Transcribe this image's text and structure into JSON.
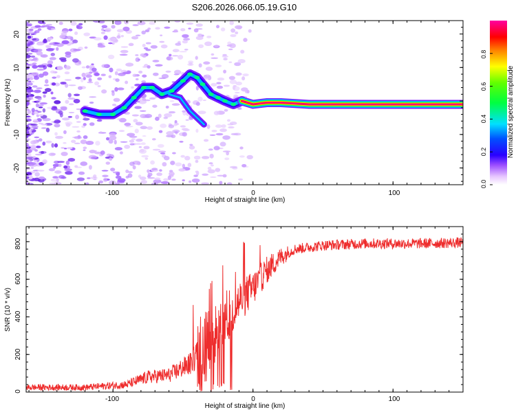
{
  "chart_data": [
    {
      "type": "heatmap",
      "title": "S206.2026.066.05.19.G10",
      "xlabel": "Height of straight line (km)",
      "ylabel": "Frequency (Hz)",
      "xlim": [
        -162,
        150
      ],
      "ylim": [
        -25,
        24
      ],
      "xticks": [
        -100,
        0,
        100
      ],
      "xtick_labels": [
        "-100",
        "0",
        "100"
      ],
      "yticks": [
        -20,
        -10,
        0,
        10,
        20
      ],
      "ytick_labels": [
        "-20",
        "-10",
        "0",
        "10",
        "20"
      ],
      "colorbar": {
        "label": "Normalized spectral amplitude",
        "range": [
          0,
          1
        ],
        "ticks": [
          0.0,
          0.2,
          0.4,
          0.6,
          0.8
        ],
        "tick_labels": [
          "0.0",
          "0.2",
          "0.4",
          "0.6",
          "0.8"
        ]
      },
      "ridge": {
        "description_points": [
          {
            "x": -120,
            "y": -3
          },
          {
            "x": -110,
            "y": -4
          },
          {
            "x": -100,
            "y": -4
          },
          {
            "x": -92,
            "y": -2
          },
          {
            "x": -85,
            "y": 1
          },
          {
            "x": -78,
            "y": 4
          },
          {
            "x": -72,
            "y": 4
          },
          {
            "x": -65,
            "y": 2
          },
          {
            "x": -58,
            "y": 3
          },
          {
            "x": -50,
            "y": 6
          },
          {
            "x": -45,
            "y": 8
          },
          {
            "x": -40,
            "y": 7
          },
          {
            "x": -36,
            "y": 5
          },
          {
            "x": -30,
            "y": 2
          },
          {
            "x": -25,
            "y": 1
          },
          {
            "x": -20,
            "y": 0
          },
          {
            "x": -14,
            "y": -1
          },
          {
            "x": -8,
            "y": 0
          },
          {
            "x": 0,
            "y": -1
          },
          {
            "x": 10,
            "y": -0.5
          },
          {
            "x": 20,
            "y": -0.5
          },
          {
            "x": 40,
            "y": -1
          },
          {
            "x": 80,
            "y": -1
          },
          {
            "x": 120,
            "y": -1
          },
          {
            "x": 150,
            "y": -1
          }
        ],
        "branch": [
          {
            "x": -60,
            "y": 2
          },
          {
            "x": -52,
            "y": 1
          },
          {
            "x": -45,
            "y": -3
          },
          {
            "x": -40,
            "y": -5
          },
          {
            "x": -35,
            "y": -7
          }
        ]
      }
    },
    {
      "type": "line",
      "xlabel": "Height of straight line (km)",
      "ylabel": "SNR (10 * v/v)",
      "xlim": [
        -162,
        150
      ],
      "ylim": [
        0,
        880
      ],
      "xticks": [
        -100,
        0,
        100
      ],
      "xtick_labels": [
        "-100",
        "0",
        "100"
      ],
      "yticks": [
        0,
        200,
        400,
        600,
        800
      ],
      "ytick_labels": [
        "0",
        "200",
        "400",
        "600",
        "800"
      ],
      "series": [
        {
          "name": "SNR",
          "color": "#ee2c2c",
          "envelope_x": [
            -162,
            -120,
            -90,
            -75,
            -60,
            -45,
            -35,
            -28,
            -20,
            -10,
            0,
            10,
            20,
            30,
            50,
            80,
            100,
            120,
            150
          ],
          "envelope_y": [
            25,
            25,
            40,
            80,
            90,
            150,
            260,
            300,
            380,
            480,
            550,
            650,
            720,
            760,
            780,
            790,
            790,
            790,
            795
          ]
        }
      ]
    }
  ]
}
